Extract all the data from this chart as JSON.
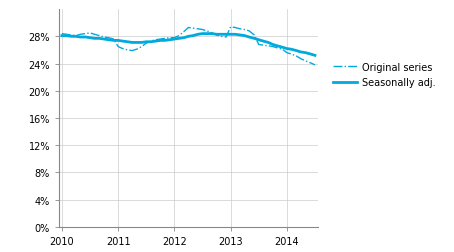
{
  "x_min": 2009.95,
  "x_max": 2014.55,
  "y_min": 0.0,
  "y_max": 0.32,
  "yticks": [
    0.0,
    0.04,
    0.08,
    0.12,
    0.16,
    0.2,
    0.24,
    0.28
  ],
  "ytick_labels": [
    "0%",
    "4%",
    "8%",
    "12%",
    "16%",
    "20%",
    "24%",
    "28%"
  ],
  "xticks": [
    2010,
    2011,
    2012,
    2013,
    2014
  ],
  "line_color": "#00AADD",
  "background_color": "#ffffff",
  "grid_color": "#CCCCCC",
  "legend_original": "Original series",
  "legend_seasonal": "Seasonally adj.",
  "original_x": [
    2010.0,
    2010.08,
    2010.17,
    2010.25,
    2010.33,
    2010.42,
    2010.5,
    2010.58,
    2010.67,
    2010.75,
    2010.83,
    2010.92,
    2011.0,
    2011.08,
    2011.17,
    2011.25,
    2011.33,
    2011.42,
    2011.5,
    2011.58,
    2011.67,
    2011.75,
    2011.83,
    2011.92,
    2012.0,
    2012.08,
    2012.17,
    2012.25,
    2012.33,
    2012.42,
    2012.5,
    2012.58,
    2012.67,
    2012.75,
    2012.83,
    2012.92,
    2013.0,
    2013.08,
    2013.17,
    2013.25,
    2013.33,
    2013.42,
    2013.5,
    2013.58,
    2013.67,
    2013.75,
    2013.83,
    2013.92,
    2014.0,
    2014.08,
    2014.17,
    2014.25,
    2014.33,
    2014.42,
    2014.5
  ],
  "original_y": [
    0.284,
    0.283,
    0.282,
    0.281,
    0.283,
    0.284,
    0.285,
    0.283,
    0.281,
    0.279,
    0.278,
    0.276,
    0.265,
    0.262,
    0.26,
    0.259,
    0.261,
    0.265,
    0.27,
    0.273,
    0.275,
    0.276,
    0.277,
    0.278,
    0.278,
    0.281,
    0.287,
    0.293,
    0.292,
    0.291,
    0.29,
    0.288,
    0.285,
    0.282,
    0.28,
    0.279,
    0.294,
    0.293,
    0.291,
    0.29,
    0.288,
    0.282,
    0.268,
    0.267,
    0.266,
    0.265,
    0.263,
    0.261,
    0.256,
    0.254,
    0.251,
    0.247,
    0.244,
    0.241,
    0.238
  ],
  "seasonal_x": [
    2010.0,
    2010.08,
    2010.17,
    2010.25,
    2010.33,
    2010.42,
    2010.5,
    2010.58,
    2010.67,
    2010.75,
    2010.83,
    2010.92,
    2011.0,
    2011.08,
    2011.17,
    2011.25,
    2011.33,
    2011.42,
    2011.5,
    2011.58,
    2011.67,
    2011.75,
    2011.83,
    2011.92,
    2012.0,
    2012.08,
    2012.17,
    2012.25,
    2012.33,
    2012.42,
    2012.5,
    2012.58,
    2012.67,
    2012.75,
    2012.83,
    2012.92,
    2013.0,
    2013.08,
    2013.17,
    2013.25,
    2013.33,
    2013.42,
    2013.5,
    2013.58,
    2013.67,
    2013.75,
    2013.83,
    2013.92,
    2014.0,
    2014.08,
    2014.17,
    2014.25,
    2014.33,
    2014.42,
    2014.5
  ],
  "seasonal_y": [
    0.281,
    0.281,
    0.28,
    0.28,
    0.279,
    0.279,
    0.278,
    0.277,
    0.277,
    0.276,
    0.275,
    0.274,
    0.274,
    0.273,
    0.272,
    0.271,
    0.271,
    0.271,
    0.272,
    0.272,
    0.273,
    0.274,
    0.274,
    0.275,
    0.276,
    0.277,
    0.278,
    0.28,
    0.281,
    0.283,
    0.284,
    0.284,
    0.284,
    0.283,
    0.283,
    0.283,
    0.283,
    0.283,
    0.282,
    0.281,
    0.279,
    0.277,
    0.275,
    0.273,
    0.271,
    0.268,
    0.266,
    0.264,
    0.262,
    0.261,
    0.259,
    0.257,
    0.256,
    0.254,
    0.252
  ],
  "figwidth": 4.54,
  "figheight": 2.53,
  "dpi": 100
}
